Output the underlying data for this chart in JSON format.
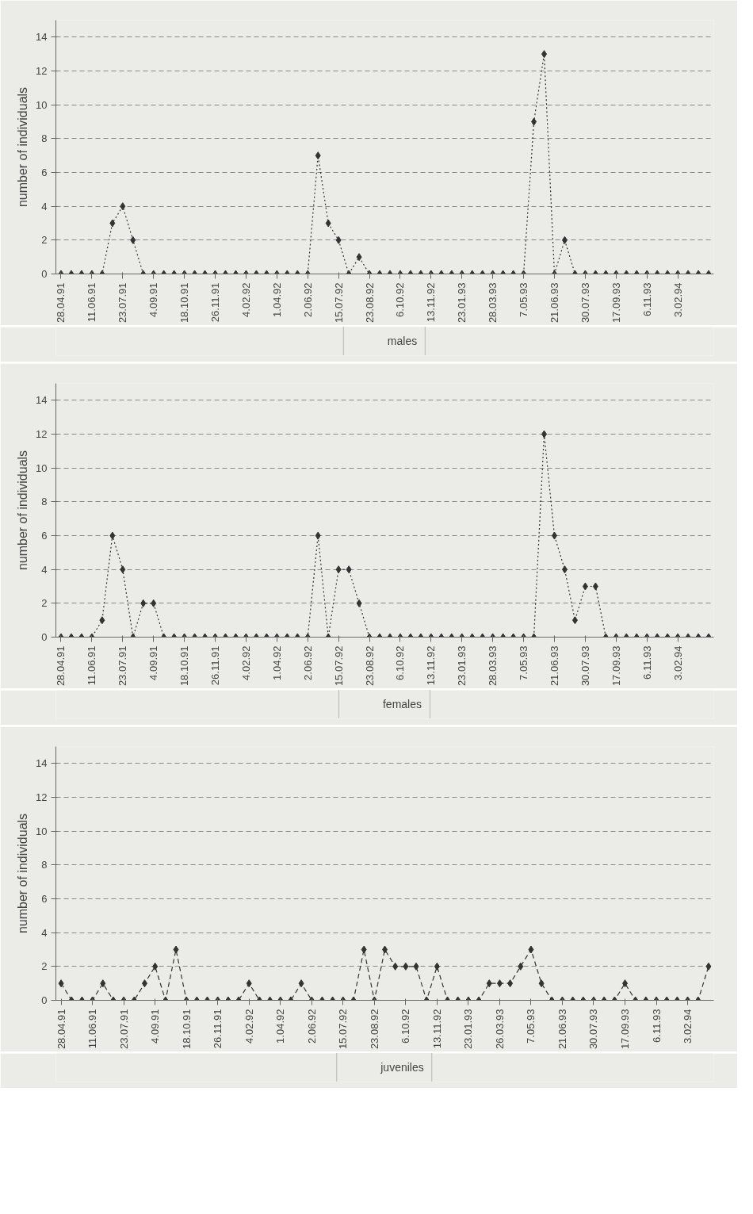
{
  "chart_data": [
    {
      "type": "line",
      "ylabel": "number of individuals",
      "categories": [
        "28.04.91",
        null,
        null,
        "11.06.91",
        null,
        null,
        "23.07.91",
        null,
        null,
        "4.09.91",
        null,
        null,
        "18.10.91",
        null,
        null,
        "26.11.91",
        null,
        null,
        "4.02.92",
        null,
        null,
        "1.04.92",
        null,
        null,
        "2.06.92",
        null,
        null,
        "15.07.92",
        null,
        null,
        "23.08.92",
        null,
        null,
        "6.10.92",
        null,
        null,
        "13.11.92",
        null,
        null,
        "23.01.93",
        null,
        null,
        "28.03.93",
        null,
        null,
        "7.05.93",
        null,
        null,
        "21.06.93",
        null,
        null,
        "30.07.93",
        null,
        null,
        "17.09.93",
        null,
        null,
        "6.11.93",
        null,
        null,
        "3.02.94",
        null,
        null,
        null
      ],
      "series": [
        {
          "name": "males",
          "color": "#333333",
          "values": [
            0,
            0,
            0,
            0,
            0,
            3,
            4,
            2,
            0,
            0,
            0,
            0,
            0,
            0,
            0,
            0,
            0,
            0,
            0,
            0,
            0,
            0,
            0,
            0,
            0,
            7,
            3,
            2,
            0,
            1,
            0,
            0,
            0,
            0,
            0,
            0,
            0,
            0,
            0,
            0,
            0,
            0,
            0,
            0,
            0,
            0,
            9,
            13,
            0,
            2,
            0,
            0,
            0,
            0,
            0,
            0,
            0,
            0,
            0,
            0,
            0,
            0,
            0,
            0
          ]
        }
      ],
      "ylim": [
        0,
        15
      ],
      "yticks": [
        0,
        2,
        4,
        6,
        8,
        10,
        12,
        14
      ],
      "grid": "y",
      "legend": "bottom",
      "marker": "diamond",
      "line_style": "dotted"
    },
    {
      "type": "line",
      "ylabel": "number of individuals",
      "categories": [
        "28.04.91",
        null,
        null,
        "11.06.91",
        null,
        null,
        "23.07.91",
        null,
        null,
        "4.09.91",
        null,
        null,
        "18.10.91",
        null,
        null,
        "26.11.91",
        null,
        null,
        "4.02.92",
        null,
        null,
        "1.04.92",
        null,
        null,
        "2.06.92",
        null,
        null,
        "15.07.92",
        null,
        null,
        "23.08.92",
        null,
        null,
        "6.10.92",
        null,
        null,
        "13.11.92",
        null,
        null,
        "23.01.93",
        null,
        null,
        "28.03.93",
        null,
        null,
        "7.05.93",
        null,
        null,
        "21.06.93",
        null,
        null,
        "30.07.93",
        null,
        null,
        "17.09.93",
        null,
        null,
        "6.11.93",
        null,
        null,
        "3.02.94",
        null,
        null,
        null
      ],
      "series": [
        {
          "name": "females",
          "color": "#333333",
          "values": [
            0,
            0,
            0,
            0,
            1,
            6,
            4,
            0,
            2,
            2,
            0,
            0,
            0,
            0,
            0,
            0,
            0,
            0,
            0,
            0,
            0,
            0,
            0,
            0,
            0,
            6,
            0,
            4,
            4,
            2,
            0,
            0,
            0,
            0,
            0,
            0,
            0,
            0,
            0,
            0,
            0,
            0,
            0,
            0,
            0,
            0,
            0,
            12,
            6,
            4,
            1,
            3,
            3,
            0,
            0,
            0,
            0,
            0,
            0,
            0,
            0,
            0,
            0,
            0
          ]
        }
      ],
      "ylim": [
        0,
        15
      ],
      "yticks": [
        0,
        2,
        4,
        6,
        8,
        10,
        12,
        14
      ],
      "grid": "y",
      "legend": "bottom",
      "marker": "diamond",
      "line_style": "dotted"
    },
    {
      "type": "line",
      "ylabel": "number of individuals",
      "categories": [
        "28.04.91",
        null,
        null,
        "11.06.91",
        null,
        null,
        "23.07.91",
        null,
        null,
        "4.09.91",
        null,
        null,
        "18.10.91",
        null,
        null,
        "26.11.91",
        null,
        null,
        "4.02.92",
        null,
        null,
        "1.04.92",
        null,
        null,
        "2.06.92",
        null,
        null,
        "15.07.92",
        null,
        null,
        "23.08.92",
        null,
        null,
        "6.10.92",
        null,
        null,
        "13.11.92",
        null,
        null,
        "23.01.93",
        null,
        null,
        "26.03.93",
        null,
        null,
        "7.05.93",
        null,
        null,
        "21.06.93",
        null,
        null,
        "30.07.93",
        null,
        null,
        "17.09.93",
        null,
        null,
        "6.11.93",
        null,
        null,
        "3.02.94",
        null,
        null
      ],
      "series": [
        {
          "name": "juveniles",
          "color": "#333333",
          "values": [
            1,
            0,
            0,
            0,
            1,
            0,
            0,
            0,
            1,
            2,
            0,
            3,
            0,
            0,
            0,
            0,
            0,
            0,
            1,
            0,
            0,
            0,
            0,
            1,
            0,
            0,
            0,
            0,
            0,
            3,
            0,
            3,
            2,
            2,
            2,
            0,
            2,
            0,
            0,
            0,
            0,
            1,
            1,
            1,
            2,
            3,
            1,
            0,
            0,
            0,
            0,
            0,
            0,
            0,
            1,
            0,
            0,
            0,
            0,
            0,
            0,
            0,
            2
          ]
        }
      ],
      "ylim": [
        0,
        15
      ],
      "yticks": [
        0,
        2,
        4,
        6,
        8,
        10,
        12,
        14
      ],
      "grid": "y",
      "legend": "bottom",
      "marker": "diamond",
      "line_style": "dashed"
    }
  ]
}
